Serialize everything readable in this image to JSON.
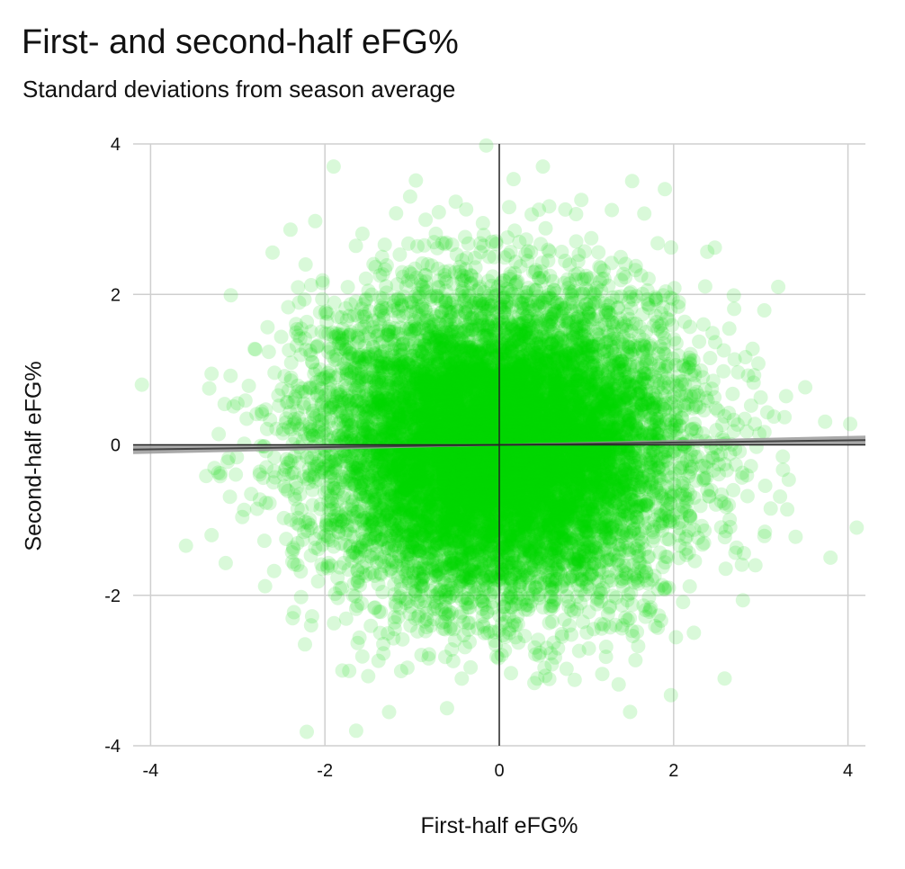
{
  "chart_data": {
    "type": "scatter",
    "title": "First- and second-half eFG%",
    "subtitle": "Standard deviations from season average",
    "xlabel": "First-half eFG%",
    "ylabel": "Second-half eFG%",
    "xlim": [
      -4.2,
      4.2
    ],
    "ylim": [
      -4,
      4
    ],
    "xticks": [
      "-4",
      "-2",
      "0",
      "2",
      "4"
    ],
    "yticks": [
      "4",
      "2",
      "0",
      "-2",
      "-4"
    ],
    "grid": true,
    "point_color": "#00d400",
    "point_opacity": 0.15,
    "point_distribution": {
      "mean_x": 0,
      "mean_y": 0,
      "sd_x": 1,
      "sd_y": 1,
      "approx_count": 12000
    },
    "notable_points": [
      {
        "x": -0.15,
        "y": 3.98
      },
      {
        "x": -1.9,
        "y": 3.7
      },
      {
        "x": 0.5,
        "y": 3.7
      },
      {
        "x": 1.9,
        "y": 3.4
      },
      {
        "x": -4.1,
        "y": 0.8
      },
      {
        "x": 4.1,
        "y": -1.1
      },
      {
        "x": 3.8,
        "y": -1.5
      },
      {
        "x": 1.5,
        "y": -3.55
      },
      {
        "x": -0.6,
        "y": -3.5
      },
      {
        "x": -1.8,
        "y": -3.0
      },
      {
        "x": -3.3,
        "y": -1.2
      },
      {
        "x": 3.2,
        "y": 2.1
      }
    ],
    "trend_line": {
      "slope": 0.015,
      "intercept": 0,
      "color": "#444444",
      "band_color": "#9a9a9a"
    }
  }
}
